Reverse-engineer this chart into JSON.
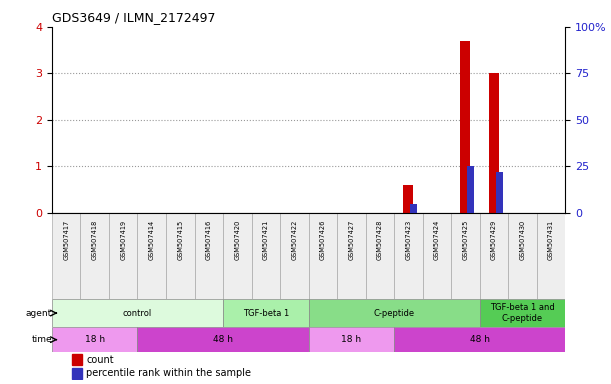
{
  "title": "GDS3649 / ILMN_2172497",
  "samples": [
    "GSM507417",
    "GSM507418",
    "GSM507419",
    "GSM507414",
    "GSM507415",
    "GSM507416",
    "GSM507420",
    "GSM507421",
    "GSM507422",
    "GSM507426",
    "GSM507427",
    "GSM507428",
    "GSM507423",
    "GSM507424",
    "GSM507425",
    "GSM507429",
    "GSM507430",
    "GSM507431"
  ],
  "count_values": [
    0,
    0,
    0,
    0,
    0,
    0,
    0,
    0,
    0,
    0,
    0,
    0,
    0.6,
    0,
    3.7,
    3.0,
    0,
    0
  ],
  "percentile_values": [
    0,
    0,
    0,
    0,
    0,
    0,
    0,
    0,
    0,
    0,
    0,
    0,
    5,
    0,
    25,
    22,
    0,
    0
  ],
  "ylim_left": [
    0,
    4
  ],
  "ylim_right": [
    0,
    100
  ],
  "yticks_left": [
    0,
    1,
    2,
    3,
    4
  ],
  "yticks_right": [
    0,
    25,
    50,
    75,
    100
  ],
  "count_color": "#cc0000",
  "percentile_color": "#3333bb",
  "agent_groups": [
    {
      "label": "control",
      "start": 0,
      "end": 6,
      "color": "#ddfadd"
    },
    {
      "label": "TGF-beta 1",
      "start": 6,
      "end": 9,
      "color": "#aaf0aa"
    },
    {
      "label": "C-peptide",
      "start": 9,
      "end": 15,
      "color": "#88dd88"
    },
    {
      "label": "TGF-beta 1 and\nC-peptide",
      "start": 15,
      "end": 18,
      "color": "#55cc55"
    }
  ],
  "time_groups": [
    {
      "label": "18 h",
      "start": 0,
      "end": 3,
      "color": "#ee99ee"
    },
    {
      "label": "48 h",
      "start": 3,
      "end": 9,
      "color": "#cc44cc"
    },
    {
      "label": "18 h",
      "start": 9,
      "end": 12,
      "color": "#ee99ee"
    },
    {
      "label": "48 h",
      "start": 12,
      "end": 18,
      "color": "#cc44cc"
    }
  ],
  "legend_count_label": "count",
  "legend_percentile_label": "percentile rank within the sample",
  "grid_color": "#999999",
  "tick_label_color_left": "#cc0000",
  "tick_label_color_right": "#2222cc"
}
